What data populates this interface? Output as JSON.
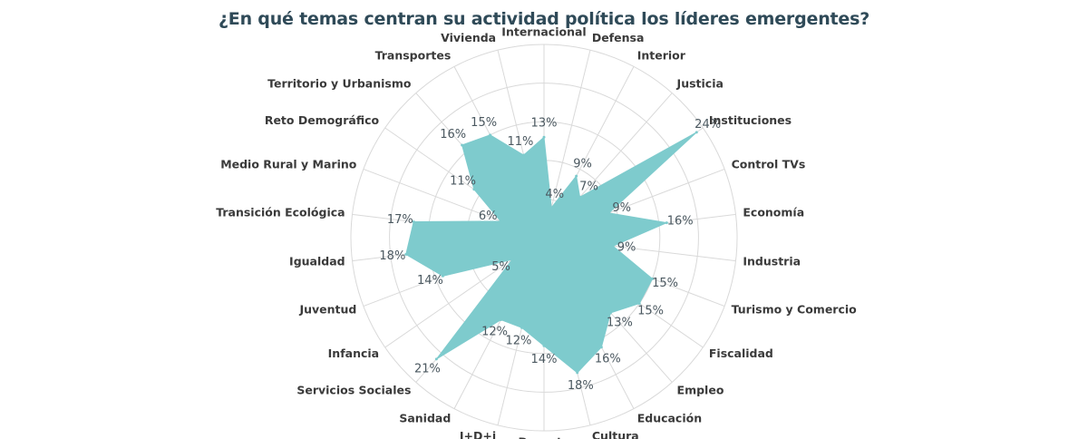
{
  "chart_data": {
    "type": "radar",
    "title": "¿En qué temas centran su actividad política los líderes emergentes?",
    "categories": [
      "Internacional",
      "Defensa",
      "Interior",
      "Justicia",
      "Instituciones",
      "Control TVs",
      "Economía",
      "Industria",
      "Turismo y Comercio",
      "Fiscalidad",
      "Empleo",
      "Educación",
      "Cultura",
      "Deporte",
      "I+D+i",
      "Sanidad",
      "Servicios Sociales",
      "Infancia",
      "Juventud",
      "Igualdad",
      "Transición Ecológica",
      "Medio Rural y Marino",
      "Reto Demográfico",
      "Territorio y Urbanismo",
      "Transportes",
      "Vivienda"
    ],
    "values": [
      13,
      4,
      9,
      7,
      24,
      9,
      16,
      9,
      15,
      15,
      13,
      16,
      18,
      14,
      12,
      12,
      21,
      5,
      14,
      18,
      17,
      6,
      11,
      16,
      15,
      11
    ],
    "value_labels": [
      "13%",
      "4%",
      "9%",
      "7%",
      "24%",
      "9%",
      "16%",
      "9%",
      "15%",
      "15%",
      "13%",
      "16%",
      "18%",
      "14%",
      "12%",
      "12%",
      "21%",
      "5%",
      "14%",
      "18%",
      "17%",
      "6%",
      "11%",
      "16%",
      "15%",
      "11%"
    ],
    "rmax": 25,
    "grid_rings": 5,
    "colors": {
      "fill": "#7ecbcd",
      "grid": "#d9d9d9",
      "title": "#2f4a58"
    }
  }
}
